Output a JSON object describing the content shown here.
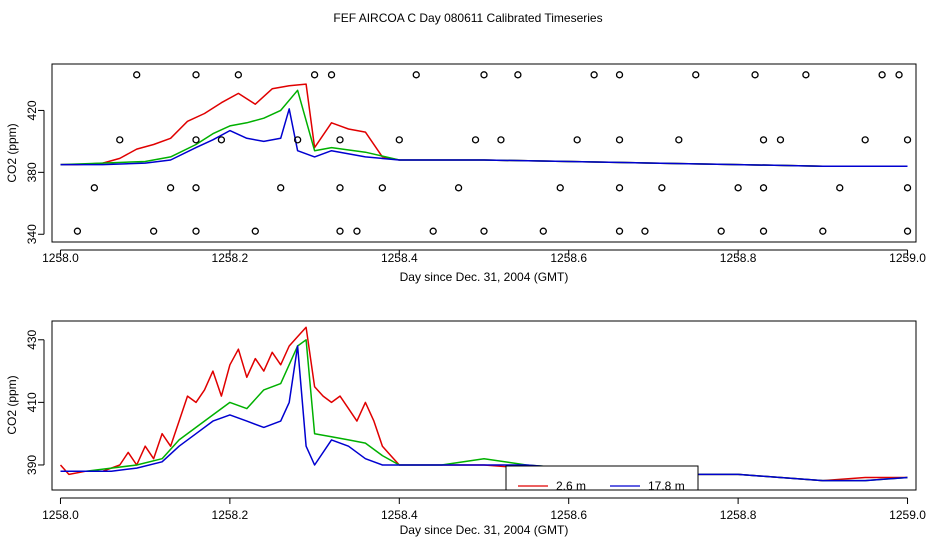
{
  "title": "FEF AIRCOA C  Day 080611  Calibrated Timeseries",
  "colors": {
    "red": "#e00000",
    "green": "#00b000",
    "blue": "#0000d0",
    "axis": "#000000"
  },
  "chart_data": [
    {
      "type": "line",
      "xlabel": "Day since Dec. 31, 2004 (GMT)",
      "ylabel": "CO2 (ppm)",
      "xlim": [
        1257.99,
        1259.01
      ],
      "ylim": [
        335,
        450
      ],
      "xticks": [
        1258.0,
        1258.2,
        1258.4,
        1258.6,
        1258.8,
        1259.0
      ],
      "xtick_labels": [
        "1258.0",
        "1258.2",
        "1258.4",
        "1258.6",
        "1258.8",
        "1259.0"
      ],
      "yticks": [
        340,
        380,
        420
      ],
      "ytick_labels": [
        "340",
        "380",
        "420"
      ],
      "series": [
        {
          "name": "2.6 m",
          "color": "#e00000",
          "x": [
            1258.0,
            1258.02,
            1258.05,
            1258.07,
            1258.09,
            1258.11,
            1258.13,
            1258.15,
            1258.17,
            1258.19,
            1258.21,
            1258.23,
            1258.25,
            1258.27,
            1258.29,
            1258.3,
            1258.32,
            1258.34,
            1258.36,
            1258.38,
            1258.4,
            1258.5,
            1258.6,
            1258.7,
            1258.8,
            1258.9,
            1259.0
          ],
          "y": [
            385,
            385,
            386,
            389,
            395,
            398,
            402,
            413,
            418,
            425,
            431,
            424,
            434,
            436,
            437,
            396,
            412,
            408,
            406,
            390,
            388,
            388,
            387,
            386,
            385,
            384,
            384
          ]
        },
        {
          "name": "",
          "color": "#00b000",
          "x": [
            1258.0,
            1258.05,
            1258.1,
            1258.13,
            1258.16,
            1258.18,
            1258.2,
            1258.22,
            1258.24,
            1258.26,
            1258.28,
            1258.3,
            1258.32,
            1258.36,
            1258.4,
            1258.5,
            1258.6,
            1258.7,
            1258.8,
            1258.9,
            1259.0
          ],
          "y": [
            385,
            386,
            387,
            390,
            398,
            405,
            410,
            412,
            415,
            420,
            433,
            394,
            396,
            393,
            388,
            388,
            387,
            386,
            385,
            384,
            384
          ]
        },
        {
          "name": "17.8 m",
          "color": "#0000d0",
          "x": [
            1258.0,
            1258.05,
            1258.1,
            1258.13,
            1258.16,
            1258.18,
            1258.2,
            1258.22,
            1258.24,
            1258.26,
            1258.27,
            1258.28,
            1258.3,
            1258.32,
            1258.36,
            1258.4,
            1258.5,
            1258.6,
            1258.7,
            1258.8,
            1258.9,
            1259.0
          ],
          "y": [
            385,
            385,
            386,
            388,
            396,
            401,
            407,
            402,
            400,
            402,
            421,
            394,
            390,
            394,
            390,
            388,
            388,
            387,
            386,
            385,
            384,
            384
          ]
        }
      ],
      "calibration_markers": {
        "x": [
          1258.02,
          1258.04,
          1258.07,
          1258.09,
          1258.11,
          1258.13,
          1258.16,
          1258.16,
          1258.16,
          1258.16,
          1258.19,
          1258.21,
          1258.23,
          1258.26,
          1258.28,
          1258.3,
          1258.32,
          1258.33,
          1258.33,
          1258.33,
          1258.35,
          1258.38,
          1258.4,
          1258.42,
          1258.44,
          1258.47,
          1258.49,
          1258.5,
          1258.5,
          1258.52,
          1258.54,
          1258.57,
          1258.59,
          1258.61,
          1258.63,
          1258.66,
          1258.66,
          1258.66,
          1258.66,
          1258.69,
          1258.71,
          1258.73,
          1258.75,
          1258.78,
          1258.8,
          1258.82,
          1258.83,
          1258.83,
          1258.83,
          1258.85,
          1258.88,
          1258.9,
          1258.92,
          1258.95,
          1258.97,
          1258.99,
          1259.0,
          1259.0,
          1259.0
        ],
        "y": [
          342,
          370,
          401,
          443,
          342,
          370,
          401,
          443,
          370,
          342,
          401,
          443,
          342,
          370,
          401,
          443,
          443,
          401,
          370,
          342,
          342,
          370,
          401,
          443,
          342,
          370,
          401,
          443,
          342,
          401,
          443,
          342,
          370,
          401,
          443,
          443,
          401,
          370,
          342,
          342,
          370,
          401,
          443,
          342,
          370,
          443,
          401,
          370,
          342,
          401,
          443,
          342,
          370,
          401,
          443,
          443,
          401,
          370,
          342
        ]
      }
    },
    {
      "type": "line",
      "xlabel": "Day since Dec. 31, 2004 (GMT)",
      "ylabel": "CO2 (ppm)",
      "xlim": [
        1257.99,
        1259.01
      ],
      "ylim": [
        382,
        436
      ],
      "xticks": [
        1258.0,
        1258.2,
        1258.4,
        1258.6,
        1258.8,
        1259.0
      ],
      "xtick_labels": [
        "1258.0",
        "1258.2",
        "1258.4",
        "1258.6",
        "1258.8",
        "1259.0"
      ],
      "yticks": [
        390,
        410,
        430
      ],
      "ytick_labels": [
        "390",
        "410",
        "430"
      ],
      "legend": {
        "entries": [
          "2.6 m",
          "17.8 m"
        ],
        "placement": "bottom-center"
      },
      "series": [
        {
          "name": "2.6 m",
          "color": "#e00000",
          "x": [
            1258.0,
            1258.01,
            1258.03,
            1258.05,
            1258.07,
            1258.08,
            1258.09,
            1258.1,
            1258.11,
            1258.12,
            1258.13,
            1258.14,
            1258.15,
            1258.16,
            1258.17,
            1258.18,
            1258.19,
            1258.2,
            1258.21,
            1258.22,
            1258.23,
            1258.24,
            1258.25,
            1258.26,
            1258.27,
            1258.28,
            1258.29,
            1258.3,
            1258.31,
            1258.32,
            1258.33,
            1258.34,
            1258.35,
            1258.36,
            1258.37,
            1258.38,
            1258.39,
            1258.4,
            1258.45,
            1258.5,
            1258.55,
            1258.6,
            1258.65,
            1258.7,
            1258.75,
            1258.8,
            1258.85,
            1258.9,
            1258.95,
            1259.0
          ],
          "y": [
            390,
            387,
            388,
            388,
            390,
            394,
            390,
            396,
            392,
            400,
            396,
            404,
            412,
            410,
            414,
            420,
            412,
            422,
            427,
            418,
            424,
            420,
            426,
            422,
            428,
            431,
            434,
            415,
            412,
            410,
            412,
            408,
            404,
            410,
            404,
            396,
            393,
            390,
            390,
            390,
            389,
            389,
            389,
            388,
            387,
            387,
            386,
            385,
            386,
            386
          ]
        },
        {
          "name": "",
          "color": "#00b000",
          "x": [
            1258.0,
            1258.03,
            1258.06,
            1258.09,
            1258.12,
            1258.14,
            1258.16,
            1258.18,
            1258.2,
            1258.22,
            1258.24,
            1258.26,
            1258.28,
            1258.29,
            1258.3,
            1258.32,
            1258.34,
            1258.36,
            1258.38,
            1258.4,
            1258.45,
            1258.5,
            1258.55,
            1258.6,
            1258.65,
            1258.7,
            1258.75,
            1258.8,
            1258.85,
            1258.9,
            1258.95,
            1259.0
          ],
          "y": [
            388,
            388,
            389,
            390,
            392,
            398,
            402,
            406,
            410,
            408,
            414,
            416,
            428,
            430,
            400,
            399,
            398,
            397,
            393,
            390,
            390,
            392,
            390,
            389,
            389,
            388,
            387,
            387,
            386,
            385,
            385,
            386
          ]
        },
        {
          "name": "17.8 m",
          "color": "#0000d0",
          "x": [
            1258.0,
            1258.03,
            1258.06,
            1258.09,
            1258.12,
            1258.14,
            1258.16,
            1258.18,
            1258.2,
            1258.22,
            1258.24,
            1258.26,
            1258.27,
            1258.28,
            1258.29,
            1258.3,
            1258.32,
            1258.34,
            1258.36,
            1258.38,
            1258.4,
            1258.45,
            1258.5,
            1258.55,
            1258.6,
            1258.65,
            1258.7,
            1258.75,
            1258.8,
            1258.85,
            1258.9,
            1258.95,
            1259.0
          ],
          "y": [
            388,
            388,
            388,
            389,
            391,
            396,
            400,
            404,
            406,
            404,
            402,
            404,
            410,
            428,
            396,
            390,
            398,
            396,
            392,
            390,
            390,
            390,
            390,
            390,
            389,
            389,
            388,
            387,
            387,
            386,
            385,
            385,
            386
          ]
        }
      ]
    }
  ]
}
